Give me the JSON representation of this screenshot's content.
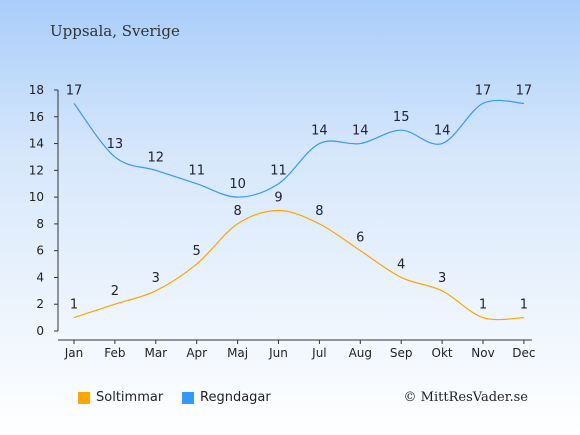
{
  "title": "Uppsala, Sverige",
  "credit": "© MittResVader.se",
  "chart_data": {
    "type": "line",
    "categories": [
      "Jan",
      "Feb",
      "Mar",
      "Apr",
      "Maj",
      "Jun",
      "Jul",
      "Aug",
      "Sep",
      "Okt",
      "Nov",
      "Dec"
    ],
    "series": [
      {
        "name": "Soltimmar",
        "color": "#ffa500",
        "values": [
          1,
          2,
          3,
          5,
          8,
          9,
          8,
          6,
          4,
          3,
          1,
          1
        ]
      },
      {
        "name": "Regndagar",
        "color": "#3399ff",
        "values": [
          17,
          13,
          12,
          11,
          10,
          11,
          14,
          14,
          15,
          14,
          17,
          17
        ]
      }
    ],
    "ylim": [
      0,
      18
    ],
    "yticks": [
      0,
      2,
      4,
      6,
      8,
      10,
      12,
      14,
      16,
      18
    ],
    "grid": false,
    "legend_position": "bottom-left"
  }
}
